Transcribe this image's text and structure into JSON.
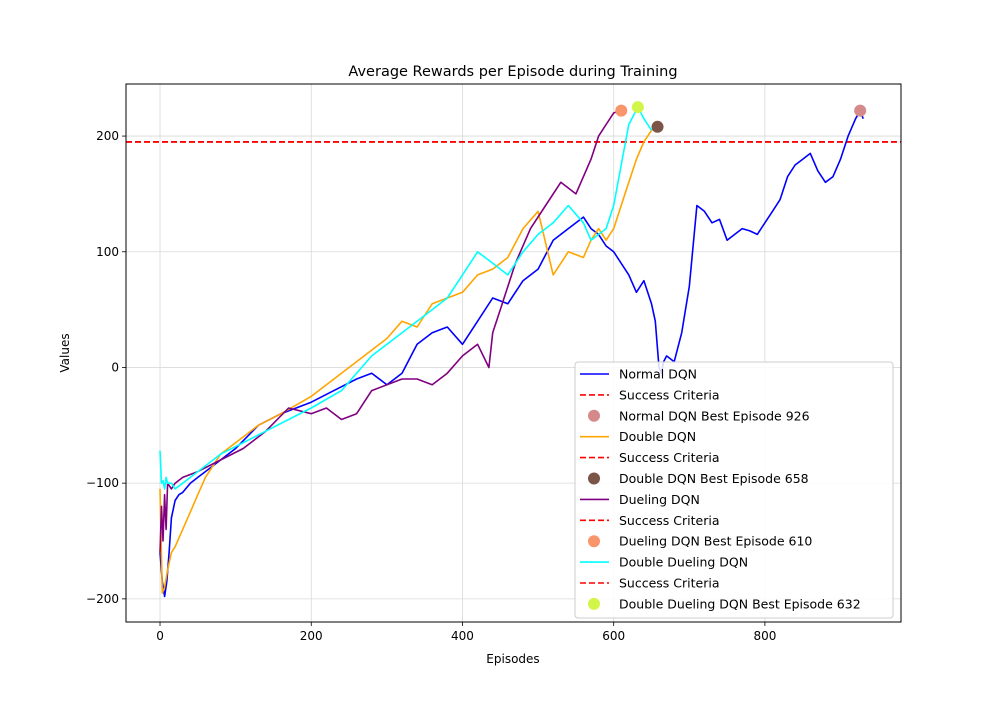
{
  "chart_data": {
    "type": "line",
    "title": "Average Rewards per Episode during Training",
    "xlabel": "Episodes",
    "ylabel": "Values",
    "xlim": [
      -45,
      980
    ],
    "ylim": [
      -220,
      245
    ],
    "xticks": [
      0,
      200,
      400,
      600,
      800
    ],
    "yticks": [
      -200,
      -100,
      0,
      100,
      200
    ],
    "grid": true,
    "legend_position": "lower right",
    "success_criteria": 195,
    "series": [
      {
        "name": "Normal DQN",
        "color": "#0000ff",
        "x": [
          0,
          3,
          6,
          9,
          12,
          15,
          20,
          25,
          30,
          40,
          50,
          60,
          80,
          100,
          130,
          160,
          200,
          230,
          260,
          280,
          300,
          320,
          340,
          360,
          380,
          400,
          420,
          440,
          460,
          480,
          500,
          520,
          540,
          560,
          570,
          580,
          590,
          600,
          610,
          620,
          630,
          640,
          650,
          655,
          660,
          663,
          666,
          670,
          680,
          690,
          700,
          710,
          720,
          730,
          740,
          750,
          760,
          770,
          780,
          790,
          800,
          810,
          820,
          830,
          840,
          850,
          860,
          870,
          880,
          890,
          900,
          910,
          920,
          926,
          930
        ],
        "y": [
          -160,
          -185,
          -198,
          -185,
          -160,
          -130,
          -115,
          -110,
          -108,
          -100,
          -95,
          -90,
          -80,
          -70,
          -50,
          -40,
          -30,
          -20,
          -10,
          -5,
          -15,
          -5,
          20,
          30,
          35,
          20,
          40,
          60,
          55,
          75,
          85,
          110,
          120,
          130,
          120,
          115,
          105,
          100,
          90,
          80,
          65,
          75,
          55,
          40,
          0,
          -5,
          5,
          10,
          5,
          30,
          70,
          140,
          135,
          125,
          128,
          110,
          115,
          120,
          118,
          115,
          125,
          135,
          145,
          165,
          175,
          180,
          185,
          170,
          160,
          165,
          180,
          200,
          215,
          222,
          215
        ]
      },
      {
        "name": "Double DQN",
        "color": "#ffa500",
        "x": [
          0,
          3,
          6,
          10,
          15,
          20,
          30,
          40,
          50,
          60,
          80,
          100,
          130,
          160,
          200,
          240,
          280,
          300,
          320,
          340,
          360,
          380,
          400,
          420,
          440,
          460,
          480,
          500,
          520,
          540,
          560,
          570,
          580,
          590,
          600,
          610,
          620,
          630,
          640,
          650,
          658
        ],
        "y": [
          -105,
          -195,
          -190,
          -175,
          -160,
          -155,
          -140,
          -125,
          -110,
          -95,
          -75,
          -65,
          -50,
          -40,
          -25,
          -5,
          15,
          25,
          40,
          35,
          55,
          60,
          65,
          80,
          85,
          95,
          120,
          135,
          80,
          100,
          95,
          110,
          120,
          110,
          120,
          140,
          160,
          180,
          195,
          205,
          208
        ]
      },
      {
        "name": "Dueling DQN",
        "color": "#800080",
        "x": [
          0,
          2,
          4,
          6,
          8,
          10,
          15,
          20,
          30,
          50,
          80,
          110,
          140,
          170,
          200,
          220,
          240,
          260,
          280,
          300,
          320,
          340,
          360,
          380,
          400,
          420,
          435,
          440,
          450,
          470,
          490,
          510,
          530,
          550,
          570,
          580,
          590,
          600,
          610
        ],
        "y": [
          -160,
          -120,
          -150,
          -110,
          -140,
          -100,
          -105,
          -100,
          -95,
          -90,
          -80,
          -70,
          -55,
          -35,
          -40,
          -35,
          -45,
          -40,
          -20,
          -15,
          -10,
          -10,
          -15,
          -5,
          10,
          20,
          0,
          30,
          50,
          90,
          120,
          140,
          160,
          150,
          180,
          200,
          210,
          220,
          222
        ]
      },
      {
        "name": "Double Dueling DQN",
        "color": "#00ffff",
        "x": [
          0,
          2,
          4,
          6,
          8,
          10,
          15,
          20,
          30,
          50,
          80,
          110,
          140,
          170,
          200,
          240,
          280,
          300,
          320,
          340,
          360,
          380,
          400,
          420,
          440,
          460,
          480,
          500,
          520,
          540,
          560,
          570,
          580,
          590,
          600,
          610,
          620,
          632,
          640,
          650
        ],
        "y": [
          -72,
          -100,
          -98,
          -105,
          -95,
          -100,
          -100,
          -105,
          -100,
          -90,
          -75,
          -65,
          -55,
          -45,
          -35,
          -20,
          10,
          20,
          30,
          40,
          50,
          60,
          80,
          100,
          90,
          80,
          100,
          115,
          125,
          140,
          125,
          110,
          115,
          120,
          140,
          175,
          210,
          225,
          215,
          205
        ]
      }
    ],
    "best_markers": [
      {
        "series": "Normal DQN",
        "x": 926,
        "y": 222,
        "color": "#d48a8a"
      },
      {
        "series": "Double DQN",
        "x": 658,
        "y": 208,
        "color": "#7a5548"
      },
      {
        "series": "Dueling DQN",
        "x": 610,
        "y": 222,
        "color": "#f9956a"
      },
      {
        "series": "Double Dueling DQN",
        "x": 632,
        "y": 225,
        "color": "#d2f54a"
      }
    ],
    "legend": [
      {
        "type": "line",
        "label": "Normal DQN",
        "color": "#0000ff"
      },
      {
        "type": "dash",
        "label": "Success Criteria",
        "color": "#ff0000"
      },
      {
        "type": "marker",
        "label": "Normal DQN Best Episode 926",
        "color": "#d48a8a"
      },
      {
        "type": "line",
        "label": "Double DQN",
        "color": "#ffa500"
      },
      {
        "type": "dash",
        "label": "Success Criteria",
        "color": "#ff0000"
      },
      {
        "type": "marker",
        "label": "Double DQN Best Episode 658",
        "color": "#7a5548"
      },
      {
        "type": "line",
        "label": "Dueling DQN",
        "color": "#800080"
      },
      {
        "type": "dash",
        "label": "Success Criteria",
        "color": "#ff0000"
      },
      {
        "type": "marker",
        "label": "Dueling DQN Best Episode 610",
        "color": "#f9956a"
      },
      {
        "type": "line",
        "label": "Double Dueling DQN",
        "color": "#00ffff"
      },
      {
        "type": "dash",
        "label": "Success Criteria",
        "color": "#ff0000"
      },
      {
        "type": "marker",
        "label": "Double Dueling DQN Best Episode 632",
        "color": "#d2f54a"
      }
    ]
  }
}
